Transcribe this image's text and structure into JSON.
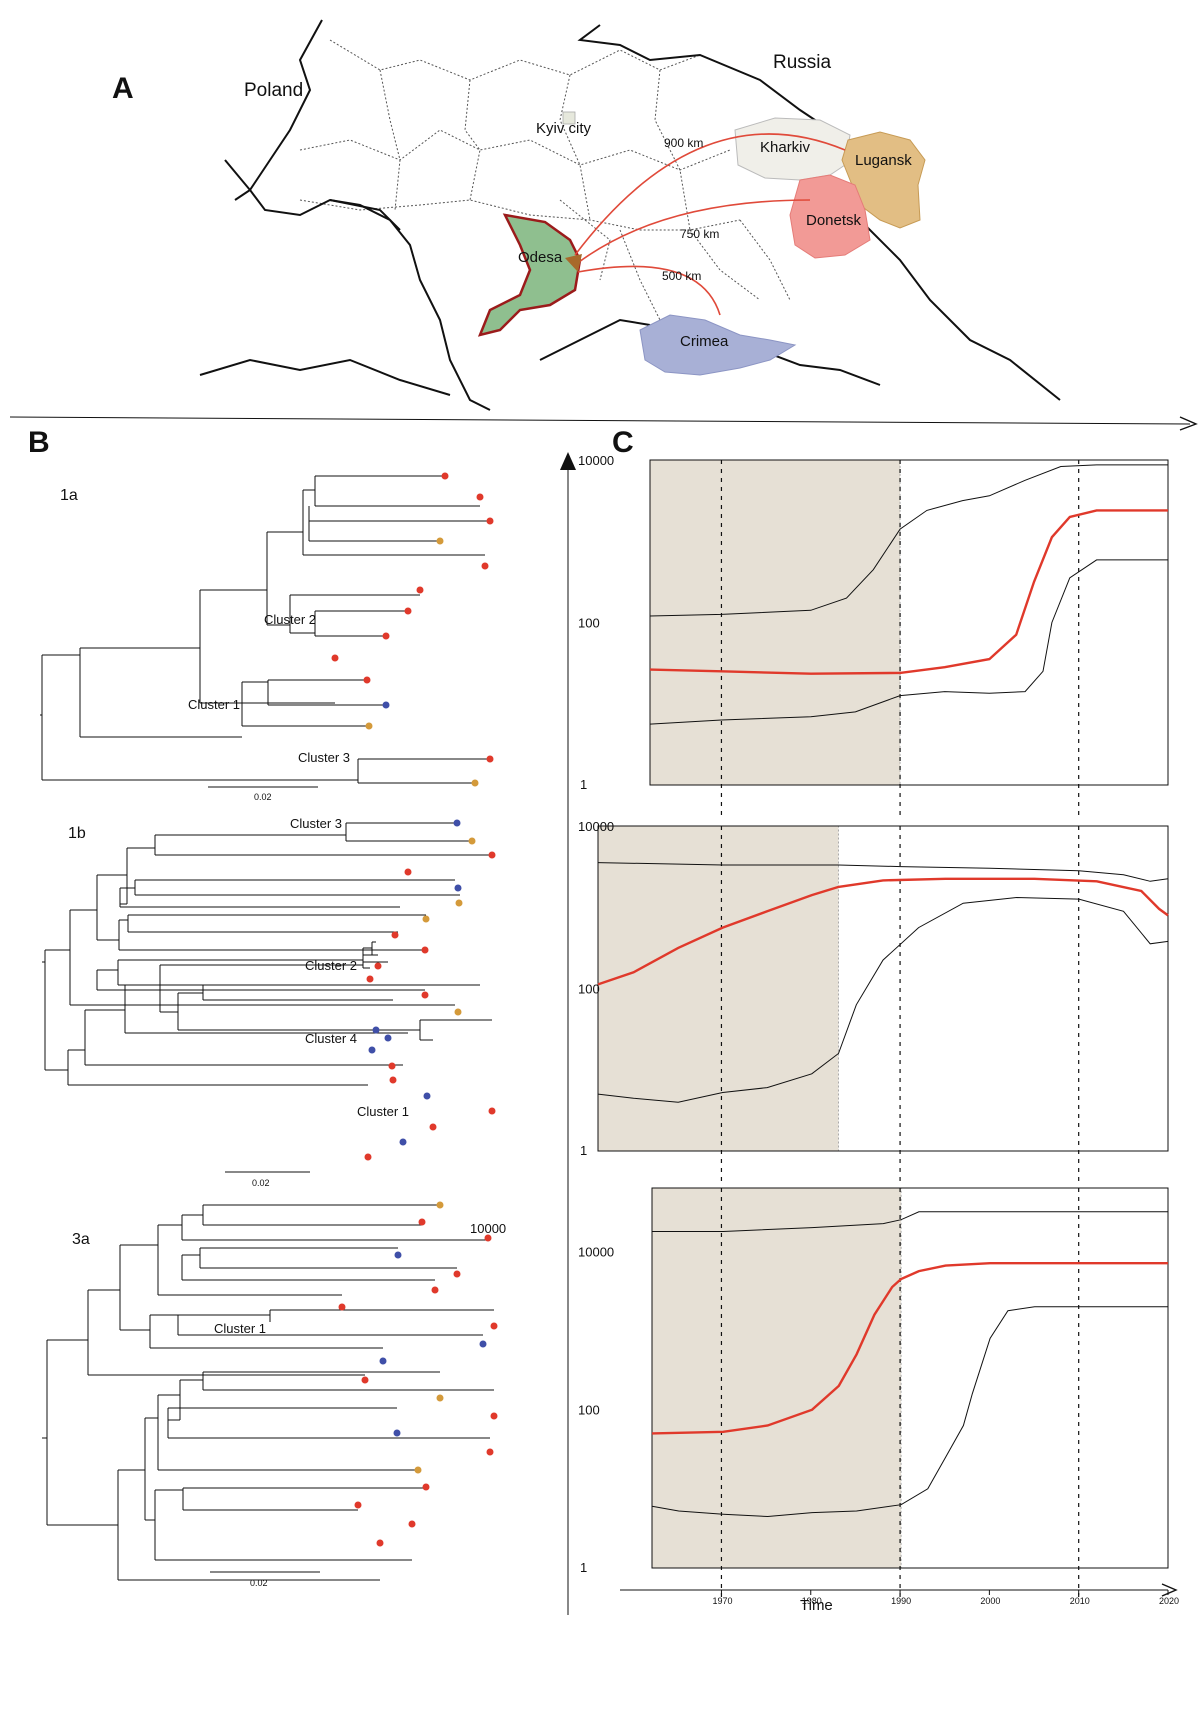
{
  "panel_labels": {
    "a": "A",
    "b": "B",
    "c": "C"
  },
  "map": {
    "countries": {
      "poland": "Poland",
      "russia": "Russia"
    },
    "regions": {
      "kyiv": "Kyiv city",
      "kharkiv": "Kharkiv",
      "lugansk": "Lugansk",
      "donetsk": "Donetsk",
      "odesa": "Odesa",
      "crimea": "Crimea"
    },
    "distances": {
      "d900": "900 km",
      "d750": "750 km",
      "d500": "500 km"
    },
    "colors": {
      "odesa": "#8fbf8f",
      "odesa_outline": "#9b1b1b",
      "kharkiv": "#f0efe9",
      "lugansk": "#e2be84",
      "donetsk": "#f29a96",
      "crimea": "#a8b0d6",
      "arrow": "#e04a3a"
    }
  },
  "trees": {
    "t1a": {
      "name": "1a",
      "scale": "0.02",
      "clusters": {
        "c1": "Cluster 1",
        "c2": "Cluster 2",
        "c3": "Cluster 3"
      }
    },
    "t1b": {
      "name": "1b",
      "scale": "0.02",
      "clusters": {
        "c1": "Cluster 1",
        "c2": "Cluster 2",
        "c3": "Cluster 3",
        "c4": "Cluster 4"
      }
    },
    "t3a": {
      "name": "3a",
      "scale": "0.02",
      "stray_label": "10000",
      "clusters": {
        "c1": "Cluster 1"
      }
    },
    "tip_colors": {
      "red": "#e0392b",
      "blue": "#3f4fa8",
      "orange": "#d49a3a"
    }
  },
  "chart_data": [
    {
      "type": "line",
      "panel": "1a",
      "xlim": [
        1962,
        2020
      ],
      "ylim_log10": [
        0,
        4
      ],
      "y_tick_labels": [
        "10000",
        "100",
        "1"
      ],
      "shade_range": [
        1962,
        1990
      ],
      "ref_lines": [
        1970,
        1990,
        2010
      ],
      "series": [
        {
          "role": "upper",
          "x": [
            1962,
            1970,
            1980,
            1984,
            1987,
            1990,
            1993,
            1997,
            2000,
            2004,
            2008,
            2012,
            2020
          ],
          "y": [
            2.08,
            2.1,
            2.15,
            2.3,
            2.65,
            3.15,
            3.38,
            3.5,
            3.56,
            3.75,
            3.92,
            3.94,
            3.94
          ]
        },
        {
          "role": "median",
          "x": [
            1962,
            1970,
            1980,
            1990,
            1995,
            2000,
            2003,
            2005,
            2007,
            2009,
            2012,
            2020
          ],
          "y": [
            1.42,
            1.4,
            1.37,
            1.38,
            1.45,
            1.55,
            1.85,
            2.5,
            3.05,
            3.3,
            3.38,
            3.38
          ]
        },
        {
          "role": "lower",
          "x": [
            1962,
            1970,
            1980,
            1985,
            1990,
            1995,
            2000,
            2004,
            2006,
            2007,
            2009,
            2012,
            2020
          ],
          "y": [
            0.75,
            0.8,
            0.84,
            0.9,
            1.1,
            1.15,
            1.13,
            1.15,
            1.4,
            2.0,
            2.55,
            2.77,
            2.77
          ]
        }
      ]
    },
    {
      "type": "line",
      "panel": "1b",
      "xlim": [
        1956,
        2020
      ],
      "ylim_log10": [
        0,
        4
      ],
      "y_tick_labels": [
        "10000",
        "100",
        "1"
      ],
      "shade_range": [
        1956,
        1983
      ],
      "ref_lines": [
        1970,
        1990,
        2010
      ],
      "series": [
        {
          "role": "upper",
          "x": [
            1956,
            1970,
            1983,
            1990,
            2000,
            2010,
            2015,
            2018,
            2020
          ],
          "y": [
            3.55,
            3.52,
            3.52,
            3.5,
            3.48,
            3.45,
            3.4,
            3.32,
            3.35
          ]
        },
        {
          "role": "median",
          "x": [
            1956,
            1960,
            1965,
            1970,
            1975,
            1980,
            1983,
            1988,
            1995,
            2005,
            2012,
            2017,
            2019,
            2020
          ],
          "y": [
            2.05,
            2.2,
            2.5,
            2.75,
            2.95,
            3.15,
            3.25,
            3.33,
            3.35,
            3.35,
            3.32,
            3.2,
            2.98,
            2.9
          ]
        },
        {
          "role": "lower",
          "x": [
            1956,
            1960,
            1965,
            1970,
            1975,
            1980,
            1983,
            1985,
            1988,
            1992,
            1997,
            2003,
            2010,
            2015,
            2018,
            2020
          ],
          "y": [
            0.7,
            0.65,
            0.6,
            0.72,
            0.78,
            0.95,
            1.2,
            1.8,
            2.35,
            2.75,
            3.05,
            3.12,
            3.1,
            2.95,
            2.55,
            2.58
          ]
        }
      ]
    },
    {
      "type": "line",
      "panel": "3a",
      "xlim": [
        1962,
        2020
      ],
      "ylim_log10": [
        0,
        4.8
      ],
      "y_tick_labels": [
        "10000",
        "100",
        "1"
      ],
      "shade_range": [
        1962,
        1990
      ],
      "ref_lines": [
        1970,
        1990,
        2010
      ],
      "series": [
        {
          "role": "upper",
          "x": [
            1962,
            1970,
            1980,
            1988,
            1990,
            1992,
            2000,
            2010,
            2020
          ],
          "y": [
            4.25,
            4.25,
            4.3,
            4.35,
            4.4,
            4.5,
            4.5,
            4.5,
            4.5
          ]
        },
        {
          "role": "median",
          "x": [
            1962,
            1970,
            1975,
            1980,
            1983,
            1985,
            1987,
            1989,
            1990,
            1992,
            1995,
            2000,
            2010,
            2020
          ],
          "y": [
            1.7,
            1.72,
            1.8,
            2.0,
            2.3,
            2.7,
            3.2,
            3.55,
            3.65,
            3.75,
            3.82,
            3.85,
            3.85,
            3.85
          ]
        },
        {
          "role": "lower",
          "x": [
            1962,
            1965,
            1970,
            1975,
            1980,
            1985,
            1990,
            1993,
            1995,
            1997,
            1998,
            2000,
            2002,
            2005,
            2010,
            2020
          ],
          "y": [
            0.78,
            0.72,
            0.68,
            0.65,
            0.7,
            0.72,
            0.8,
            1.0,
            1.4,
            1.8,
            2.2,
            2.9,
            3.25,
            3.3,
            3.3,
            3.3
          ]
        }
      ]
    }
  ],
  "axes": {
    "time_label": "Time",
    "x_ticks": [
      "1970",
      "1980",
      "1990",
      "2000",
      "2010",
      "2020"
    ],
    "x_tick_values": [
      1970,
      1980,
      1990,
      2000,
      2010,
      2020
    ]
  }
}
